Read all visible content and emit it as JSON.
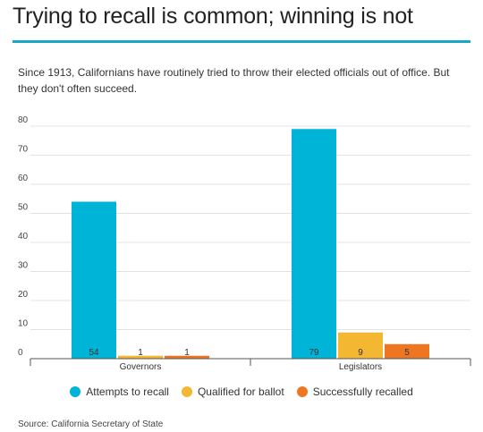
{
  "title": "Trying to recall is common; winning is not",
  "subtitle": "Since 1913, Californians have routinely tried to throw their elected officials out of office. But they don't often succeed.",
  "source": "Source: California Secretary of State",
  "colors": {
    "title_rule": "#1aa6c8",
    "grid": "#e3e3e3",
    "axis": "#555555"
  },
  "chart_data": {
    "type": "bar",
    "categories": [
      "Governors",
      "Legislators"
    ],
    "series": [
      {
        "name": "Attempts to recall",
        "color": "#00b4d8",
        "values": [
          54,
          79
        ]
      },
      {
        "name": "Qualified for ballot",
        "color": "#f4b731",
        "values": [
          1,
          9
        ]
      },
      {
        "name": "Successfully recalled",
        "color": "#ee7623",
        "values": [
          1,
          5
        ]
      }
    ],
    "ylim": [
      0,
      80
    ],
    "yticks": [
      0,
      10,
      20,
      30,
      40,
      50,
      60,
      70,
      80
    ],
    "grid": true,
    "legend_position": "bottom",
    "xlabel": "",
    "ylabel": ""
  }
}
